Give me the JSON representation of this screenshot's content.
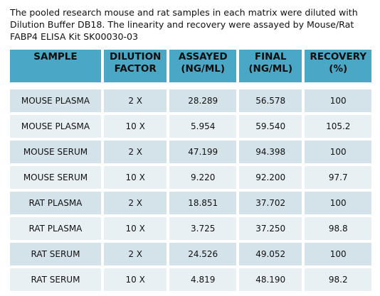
{
  "intro": {
    "line1": "The pooled research mouse and rat samples in each matrix were diluted with",
    "line2": "Dilution Buffer DB18. The linearity and recovery were assayed by Mouse/Rat",
    "line3": "FABP4 ELISA Kit  SK00030-03"
  },
  "table": {
    "headers": [
      {
        "line1": "SAMPLE",
        "line2": ""
      },
      {
        "line1": "DILUTION",
        "line2": "FACTOR"
      },
      {
        "line1": "ASSAYED",
        "line2": "(NG/ML)"
      },
      {
        "line1": "FINAL",
        "line2": "(NG/ML)"
      },
      {
        "line1": "RECOVERY",
        "line2": "(%)"
      }
    ],
    "rows": [
      {
        "sample": "MOUSE PLASMA",
        "dilution": "2 X",
        "assayed": "28.289",
        "final": "56.578",
        "recovery": "100"
      },
      {
        "sample": "MOUSE PLASMA",
        "dilution": "10 X",
        "assayed": "5.954",
        "final": "59.540",
        "recovery": "105.2"
      },
      {
        "sample": "MOUSE SERUM",
        "dilution": "2 X",
        "assayed": "47.199",
        "final": "94.398",
        "recovery": "100"
      },
      {
        "sample": "MOUSE SERUM",
        "dilution": "10 X",
        "assayed": "9.220",
        "final": "92.200",
        "recovery": "97.7"
      },
      {
        "sample": "RAT PLASMA",
        "dilution": "2 X",
        "assayed": "18.851",
        "final": "37.702",
        "recovery": "100"
      },
      {
        "sample": "RAT PLASMA",
        "dilution": "10 X",
        "assayed": "3.725",
        "final": "37.250",
        "recovery": "98.8"
      },
      {
        "sample": "RAT SERUM",
        "dilution": "2 X",
        "assayed": "24.526",
        "final": "49.052",
        "recovery": "100"
      },
      {
        "sample": "RAT SERUM",
        "dilution": "10 X",
        "assayed": "4.819",
        "final": "48.190",
        "recovery": "98.2"
      }
    ]
  },
  "colors": {
    "header_bg": "#4aa8c6",
    "row_bg": "#d4e3ea",
    "row_alt_bg": "#e9f0f3"
  }
}
